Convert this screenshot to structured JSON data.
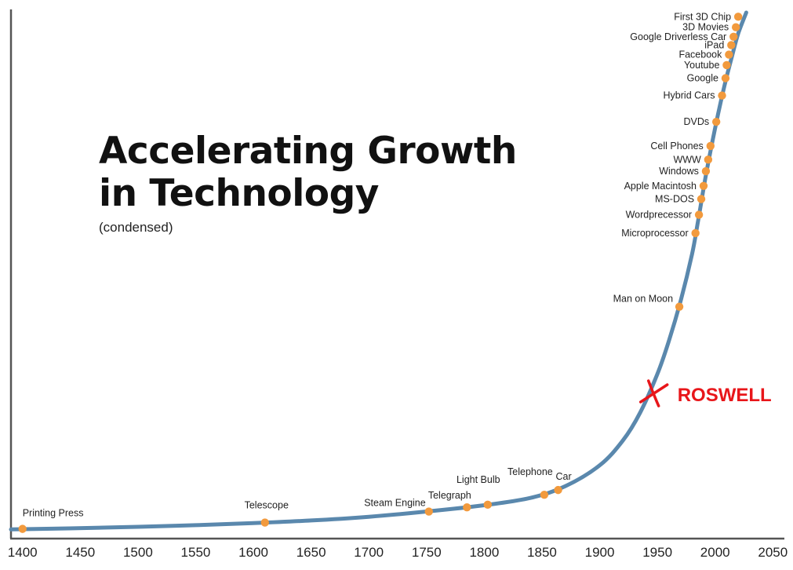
{
  "chart_data": {
    "type": "line",
    "title_lines": [
      "Accelerating Growth",
      "in Technology"
    ],
    "subtitle": "(condensed)",
    "xlabel": "",
    "ylabel": "",
    "xlim": [
      1390,
      2060
    ],
    "ylim": [
      0,
      100
    ],
    "x_ticks": [
      1400,
      1450,
      1500,
      1550,
      1600,
      1650,
      1700,
      1750,
      1800,
      1850,
      1900,
      1950,
      2000,
      2050
    ],
    "grid": false,
    "colors": {
      "line": "#5a88ad",
      "point": "#f29a3d",
      "annotation": "#e8161a",
      "axis": "#555555"
    },
    "curve": [
      {
        "x": 1390,
        "y": 1.6
      },
      {
        "x": 1440,
        "y": 1.8
      },
      {
        "x": 1500,
        "y": 2.1
      },
      {
        "x": 1550,
        "y": 2.4
      },
      {
        "x": 1600,
        "y": 2.8
      },
      {
        "x": 1650,
        "y": 3.3
      },
      {
        "x": 1700,
        "y": 4.0
      },
      {
        "x": 1750,
        "y": 5.0
      },
      {
        "x": 1800,
        "y": 6.2
      },
      {
        "x": 1840,
        "y": 7.6
      },
      {
        "x": 1870,
        "y": 9.8
      },
      {
        "x": 1900,
        "y": 13.8
      },
      {
        "x": 1920,
        "y": 18.5
      },
      {
        "x": 1935,
        "y": 23.8
      },
      {
        "x": 1950,
        "y": 31.2
      },
      {
        "x": 1960,
        "y": 37.5
      },
      {
        "x": 1970,
        "y": 45.0
      },
      {
        "x": 1980,
        "y": 54.0
      },
      {
        "x": 1985,
        "y": 60.0
      },
      {
        "x": 1992,
        "y": 69.0
      },
      {
        "x": 2000,
        "y": 78.0
      },
      {
        "x": 2008,
        "y": 86.0
      },
      {
        "x": 2015,
        "y": 92.0
      },
      {
        "x": 2020,
        "y": 96.0
      },
      {
        "x": 2027,
        "y": 100.0
      }
    ],
    "events": [
      {
        "label": "Printing Press",
        "x": 1400,
        "y": 1.7
      },
      {
        "label": "Telescope",
        "x": 1610,
        "y": 2.9
      },
      {
        "label": "Steam Engine",
        "x": 1752,
        "y": 5.0
      },
      {
        "label": "Telegraph",
        "x": 1785,
        "y": 5.8
      },
      {
        "label": "Light Bulb",
        "x": 1803,
        "y": 6.3
      },
      {
        "label": "Telephone",
        "x": 1852,
        "y": 8.2
      },
      {
        "label": "Car",
        "x": 1864,
        "y": 9.1
      },
      {
        "label": "Man on Moon",
        "x": 1969,
        "y": 44.0
      },
      {
        "label": "Microprocessor",
        "x": 1983,
        "y": 58.0
      },
      {
        "label": "Wordprecessor",
        "x": 1986,
        "y": 61.5
      },
      {
        "label": "MS-DOS",
        "x": 1988,
        "y": 64.5
      },
      {
        "label": "Apple Macintosh",
        "x": 1990,
        "y": 67.0
      },
      {
        "label": "Windows",
        "x": 1992,
        "y": 69.8
      },
      {
        "label": "WWW",
        "x": 1994,
        "y": 72.0
      },
      {
        "label": "Cell Phones",
        "x": 1996,
        "y": 74.6
      },
      {
        "label": "DVDs",
        "x": 2001,
        "y": 79.2
      },
      {
        "label": "Hybrid Cars",
        "x": 2006,
        "y": 84.2
      },
      {
        "label": "Google",
        "x": 2009,
        "y": 87.5
      },
      {
        "label": "Youtube",
        "x": 2010,
        "y": 90.0
      },
      {
        "label": "Facebook",
        "x": 2012,
        "y": 92.0
      },
      {
        "label": "iPad",
        "x": 2014,
        "y": 93.8
      },
      {
        "label": "Google Driverless Car",
        "x": 2016,
        "y": 95.4
      },
      {
        "label": "3D Movies",
        "x": 2018,
        "y": 97.2
      },
      {
        "label": "First 3D Chip",
        "x": 2020,
        "y": 99.2
      }
    ],
    "annotations": [
      {
        "label": "ROSWELL",
        "x": 1947,
        "y": 27.5,
        "marker": "x"
      }
    ]
  }
}
